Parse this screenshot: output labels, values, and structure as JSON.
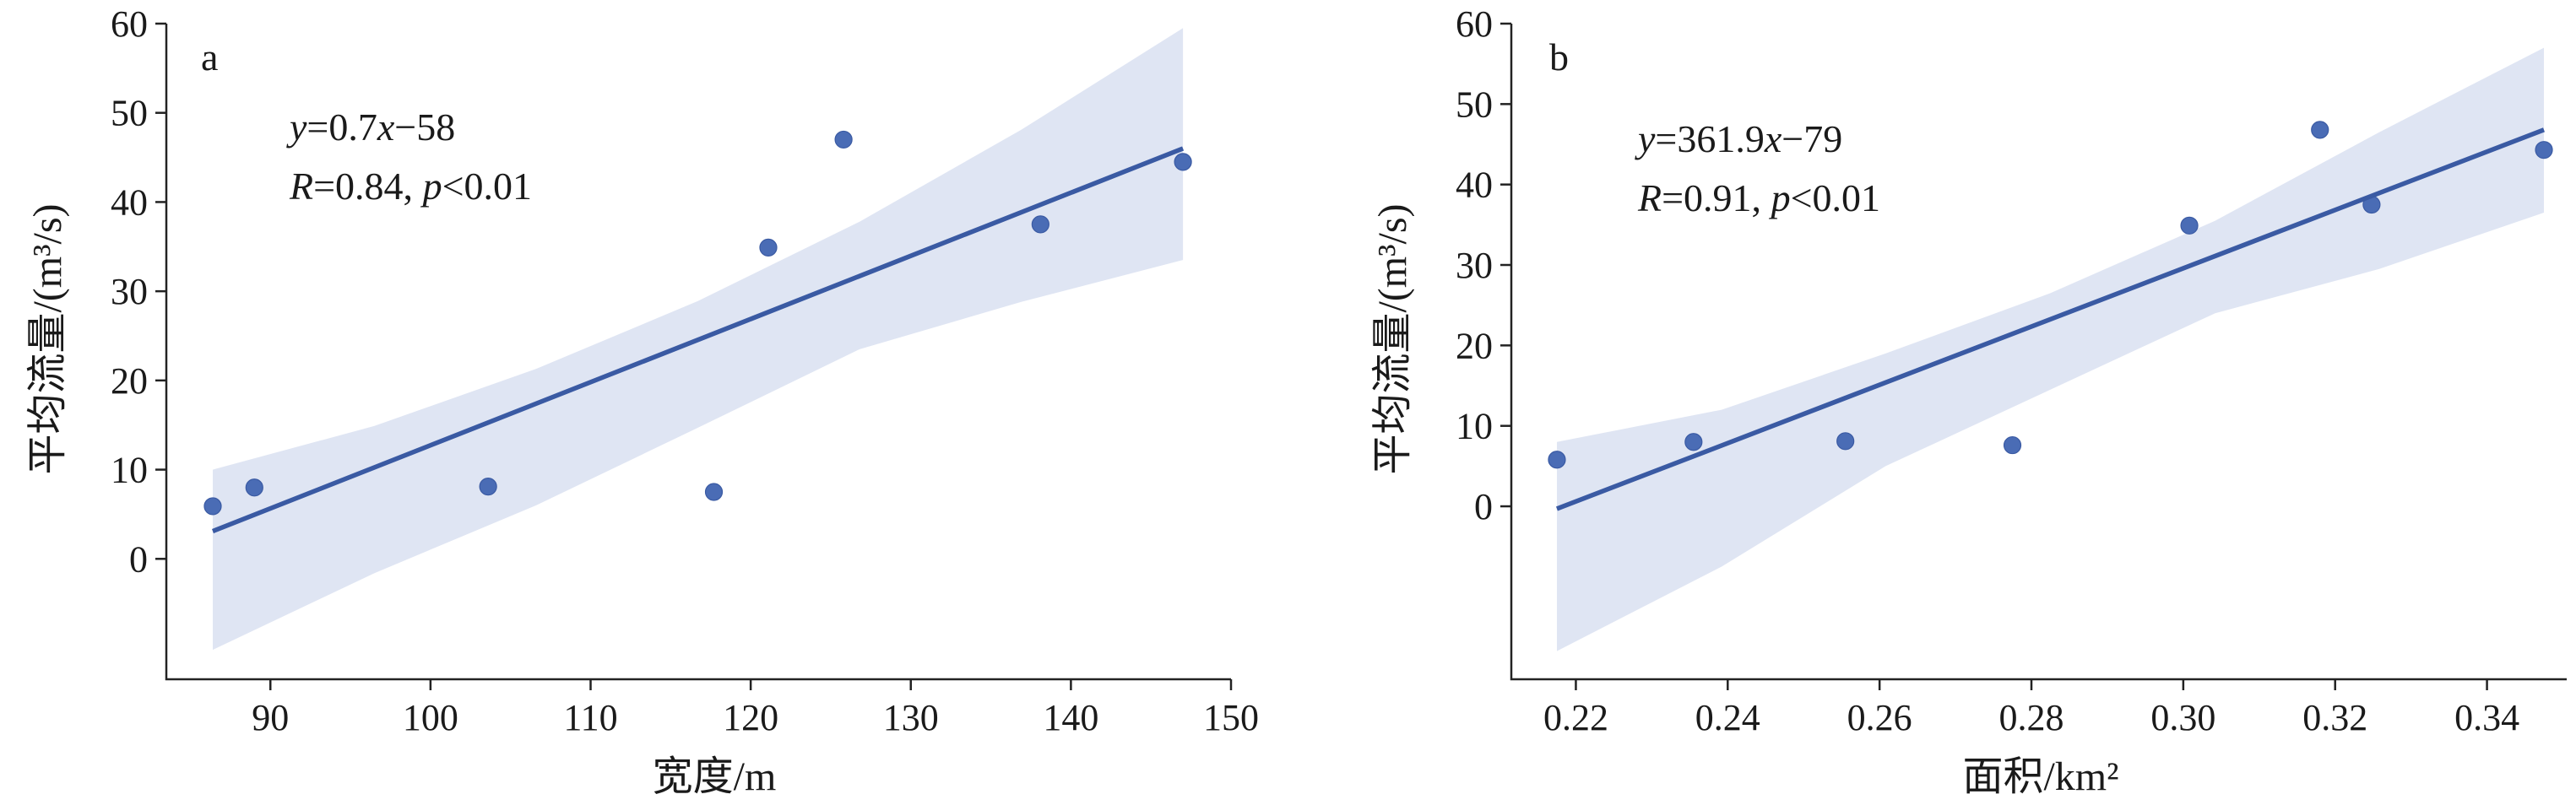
{
  "chart_data": [
    {
      "type": "scatter",
      "panel": "a",
      "xlabel": "宽度/m",
      "ylabel": "平均流量/(m³/s)",
      "xlim": [
        83.5,
        150
      ],
      "ylim": [
        -13.5,
        60
      ],
      "xticks": [
        90,
        100,
        110,
        120,
        130,
        140,
        150
      ],
      "yticks": [
        0,
        10,
        20,
        30,
        40,
        50,
        60
      ],
      "xtick_labels": [
        "90",
        "100",
        "110",
        "120",
        "130",
        "140",
        "150"
      ],
      "ytick_labels": [
        "0",
        "10",
        "20",
        "30",
        "40",
        "50",
        "60"
      ],
      "points": [
        {
          "x": 86.4,
          "y": 5.9
        },
        {
          "x": 89.0,
          "y": 8.0
        },
        {
          "x": 103.6,
          "y": 8.1
        },
        {
          "x": 117.7,
          "y": 7.5
        },
        {
          "x": 121.1,
          "y": 34.9
        },
        {
          "x": 125.8,
          "y": 47.0
        },
        {
          "x": 138.1,
          "y": 37.5
        },
        {
          "x": 147.0,
          "y": 44.5
        }
      ],
      "fit": {
        "x": [
          86.4,
          147.0
        ],
        "y": [
          3.1,
          46.0
        ]
      },
      "ci_band": {
        "x": [
          86.4,
          96.5,
          106.6,
          116.7,
          126.8,
          136.9,
          147.0
        ],
        "upper": [
          10.0,
          14.9,
          21.3,
          28.9,
          37.8,
          48.1,
          59.5
        ],
        "lower": [
          -10.2,
          -1.6,
          6.0,
          14.7,
          23.5,
          28.8,
          33.5
        ]
      },
      "equation_line1": {
        "y_var": "y",
        "y_eq": "=0.7",
        "x_var": "x",
        "rest": "−58"
      },
      "equation_line2": {
        "r_var": "R",
        "r_eq": "=0.84, ",
        "p_var": "p",
        "p_rest": "<0.01"
      },
      "grid": false,
      "colors": {
        "points": "#4a6cb5",
        "line": "#3a5aa3",
        "band": "#dfe5f3"
      }
    },
    {
      "type": "scatter",
      "panel": "b",
      "xlabel": "面积/km²",
      "ylabel": "平均流量/(m³/s)",
      "xlim": [
        0.2115,
        0.3505
      ],
      "ylim": [
        -21.5,
        60
      ],
      "xticks": [
        0.22,
        0.24,
        0.26,
        0.28,
        0.3,
        0.32,
        0.34
      ],
      "yticks": [
        0,
        10,
        20,
        30,
        40,
        50,
        60
      ],
      "xtick_labels": [
        "0.22",
        "0.24",
        "0.26",
        "0.28",
        "0.30",
        "0.32",
        "0.34"
      ],
      "ytick_labels": [
        "0",
        "10",
        "20",
        "30",
        "40",
        "50",
        "60"
      ],
      "points": [
        {
          "x": 0.2175,
          "y": 5.8
        },
        {
          "x": 0.2355,
          "y": 8.0
        },
        {
          "x": 0.2555,
          "y": 8.1
        },
        {
          "x": 0.2775,
          "y": 7.6
        },
        {
          "x": 0.3008,
          "y": 34.9
        },
        {
          "x": 0.318,
          "y": 46.8
        },
        {
          "x": 0.3248,
          "y": 37.5
        },
        {
          "x": 0.3475,
          "y": 44.3
        }
      ],
      "fit": {
        "x": [
          0.2175,
          0.3475
        ],
        "y": [
          -0.3,
          46.8
        ]
      },
      "ci_band": {
        "x": [
          0.2175,
          0.2392,
          0.2608,
          0.2825,
          0.3042,
          0.3258,
          0.3475
        ],
        "upper": [
          8.0,
          12.0,
          19.0,
          26.5,
          35.5,
          46.5,
          57.0
        ],
        "lower": [
          -18.0,
          -7.5,
          5.0,
          14.5,
          24.0,
          29.5,
          36.5
        ]
      },
      "equation_line1": {
        "y_var": "y",
        "y_eq": "=361.9",
        "x_var": "x",
        "rest": "−79"
      },
      "equation_line2": {
        "r_var": "R",
        "r_eq": "=0.91, ",
        "p_var": "p",
        "p_rest": "<0.01"
      },
      "grid": false,
      "colors": {
        "points": "#4a6cb5",
        "line": "#3a5aa3",
        "band": "#dfe5f3"
      }
    }
  ]
}
